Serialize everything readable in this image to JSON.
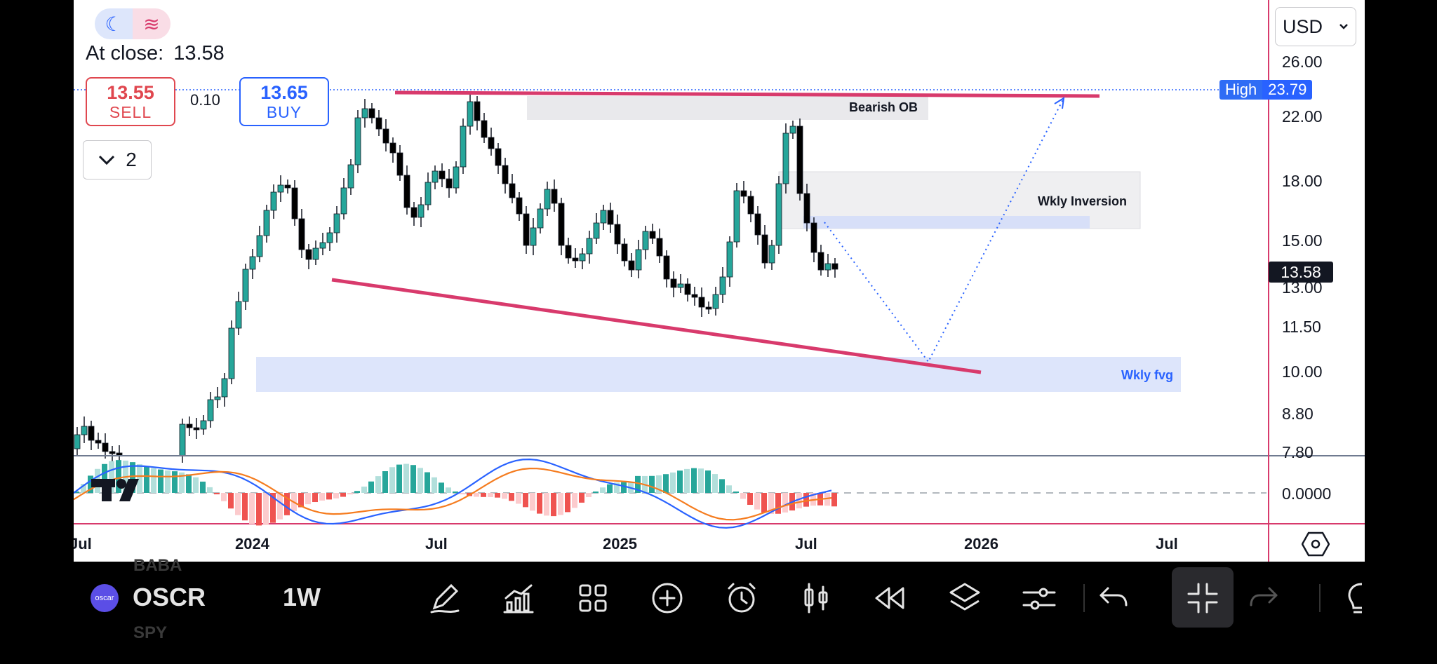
{
  "header": {
    "theme_icons": [
      "moon-icon",
      "waves-icon"
    ],
    "at_close_label": "At close:",
    "at_close_value": "13.58",
    "sell_price": "13.55",
    "sell_label": "SELL",
    "spread": "0.10",
    "buy_price": "13.65",
    "buy_label": "BUY",
    "collapsed_count": "2",
    "currency": "USD"
  },
  "price_axis": {
    "ticks": [
      "26.00",
      "22.00",
      "18.00",
      "15.00",
      "13.00",
      "11.50",
      "10.00",
      "8.80",
      "7.80"
    ],
    "high_label": "High",
    "high_value": "23.79",
    "last_price": "13.58"
  },
  "zones": {
    "bearish_ob": "Bearish OB",
    "wkly_inversion": "Wkly Inversion",
    "wkly_fvg": "Wkly fvg"
  },
  "indicator": {
    "zero_label": "0.0000"
  },
  "time_axis": {
    "ticks": [
      "Jul",
      "2024",
      "Jul",
      "2025",
      "Jul",
      "2026",
      "Jul"
    ]
  },
  "toolbar": {
    "symbol_avatar": "oscar",
    "symbol": "OSCR",
    "interval": "1W",
    "tools": [
      "pen-icon",
      "indicators-icon",
      "layouts-grid-icon",
      "add-icon",
      "alert-clock-icon",
      "candles-icon",
      "replay-icon",
      "layers-icon",
      "settings-sliders-icon",
      "undo-icon",
      "collapse-icon",
      "redo-icon",
      "bulb-icon"
    ]
  },
  "colors": {
    "up_candle": "#26a69a",
    "down_candle": "#000000",
    "trendline": "#d83a6c",
    "projection": "#2962ff",
    "macd_line": "#2962ff",
    "signal_line": "#f57c1f"
  }
}
